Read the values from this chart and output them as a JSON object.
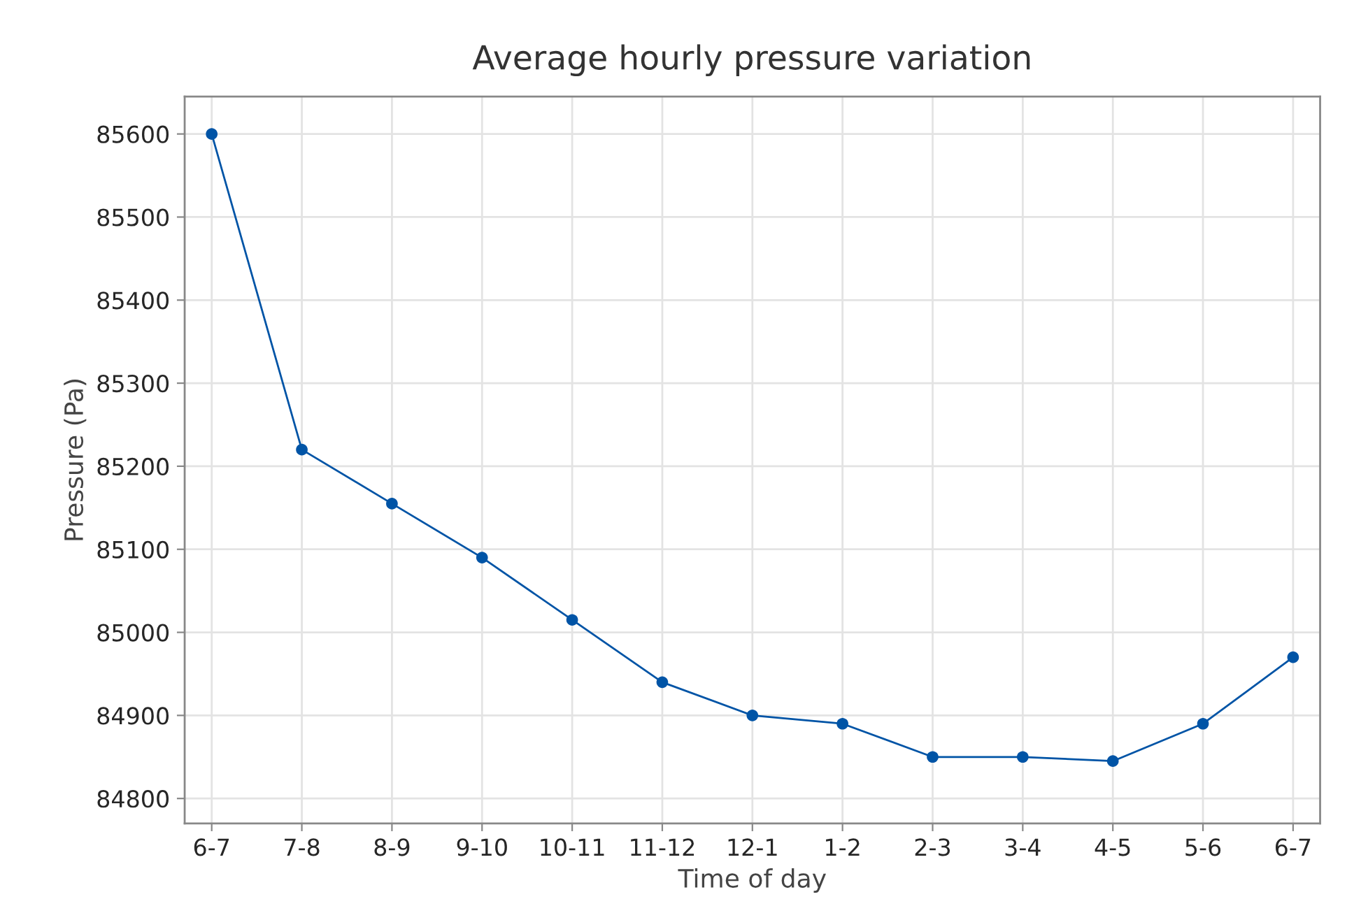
{
  "chart_data": {
    "type": "line",
    "title": "Average hourly pressure variation",
    "xlabel": "Time of day",
    "ylabel": "Pressure (Pa)",
    "categories": [
      "6-7",
      "7-8",
      "8-9",
      "9-10",
      "10-11",
      "11-12",
      "12-1",
      "1-2",
      "2-3",
      "3-4",
      "4-5",
      "5-6",
      "6-7"
    ],
    "series": [
      {
        "color": "#0054a6",
        "values": [
          85600,
          85220,
          85155,
          85090,
          85015,
          84940,
          84900,
          84890,
          84850,
          84850,
          84845,
          84890,
          84970
        ]
      }
    ],
    "ylim": [
      84770,
      85645
    ],
    "yticks": [
      84800,
      84900,
      85000,
      85100,
      85200,
      85300,
      85400,
      85500,
      85600
    ],
    "grid": true,
    "marker": "circle",
    "line_style": "solid"
  }
}
